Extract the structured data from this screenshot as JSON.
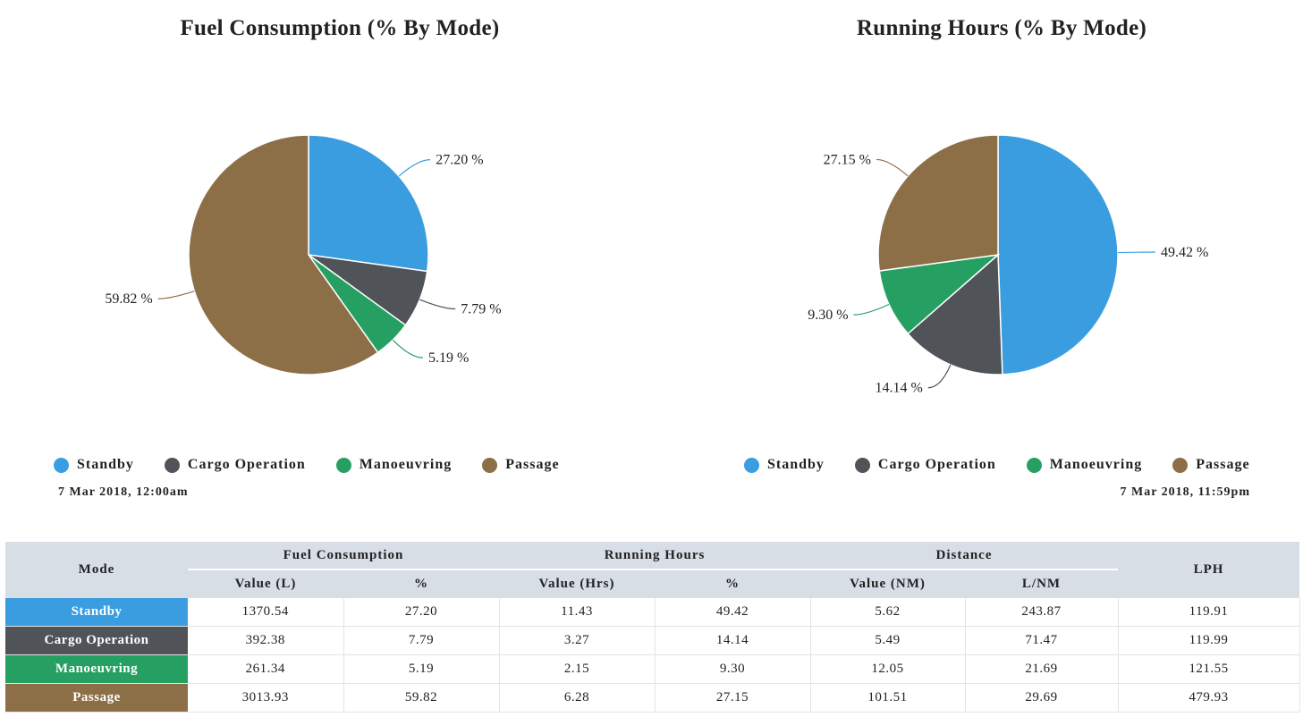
{
  "colors": {
    "standby": "#3a9de0",
    "cargo_operation": "#505459",
    "manoeuvring": "#26a062",
    "passage": "#8d6f47",
    "header_bg": "#d7dee6"
  },
  "legend": {
    "items": [
      {
        "label": "Standby",
        "color": "#3a9de0"
      },
      {
        "label": "Cargo Operation",
        "color": "#505459"
      },
      {
        "label": "Manoeuvring",
        "color": "#26a062"
      },
      {
        "label": "Passage",
        "color": "#8d6f47"
      }
    ]
  },
  "date_start": "7 Mar 2018, 12:00am",
  "date_end": "7 Mar 2018, 11:59pm",
  "chart_data": [
    {
      "type": "pie",
      "title": "Fuel Consumption (% By Mode)",
      "categories": [
        "Standby",
        "Cargo Operation",
        "Manoeuvring",
        "Passage"
      ],
      "values": [
        27.2,
        7.79,
        5.19,
        59.82
      ],
      "labels": [
        "27.20 %",
        "7.79 %",
        "5.19 %",
        "59.82 %"
      ],
      "colors": [
        "#3a9de0",
        "#505459",
        "#26a062",
        "#8d6f47"
      ],
      "legend_position": "bottom"
    },
    {
      "type": "pie",
      "title": "Running Hours (% By Mode)",
      "categories": [
        "Standby",
        "Cargo Operation",
        "Manoeuvring",
        "Passage"
      ],
      "values": [
        49.42,
        14.14,
        9.3,
        27.15
      ],
      "labels": [
        "49.42 %",
        "14.14 %",
        "9.30 %",
        "27.15 %"
      ],
      "colors": [
        "#3a9de0",
        "#505459",
        "#26a062",
        "#8d6f47"
      ],
      "legend_position": "bottom"
    }
  ],
  "table": {
    "mode_header": "Mode",
    "groups": [
      "Fuel Consumption",
      "Running Hours",
      "Distance"
    ],
    "lph_header": "LPH",
    "subheaders": [
      "Value (L)",
      "%",
      "Value (Hrs)",
      "%",
      "Value (NM)",
      "L/NM"
    ],
    "rows": [
      {
        "mode": "Standby",
        "color": "#3a9de0",
        "cells": [
          "1370.54",
          "27.20",
          "11.43",
          "49.42",
          "5.62",
          "243.87",
          "119.91"
        ]
      },
      {
        "mode": "Cargo Operation",
        "color": "#505459",
        "cells": [
          "392.38",
          "7.79",
          "3.27",
          "14.14",
          "5.49",
          "71.47",
          "119.99"
        ]
      },
      {
        "mode": "Manoeuvring",
        "color": "#26a062",
        "cells": [
          "261.34",
          "5.19",
          "2.15",
          "9.30",
          "12.05",
          "21.69",
          "121.55"
        ]
      },
      {
        "mode": "Passage",
        "color": "#8d6f47",
        "cells": [
          "3013.93",
          "59.82",
          "6.28",
          "27.15",
          "101.51",
          "29.69",
          "479.93"
        ]
      }
    ]
  }
}
